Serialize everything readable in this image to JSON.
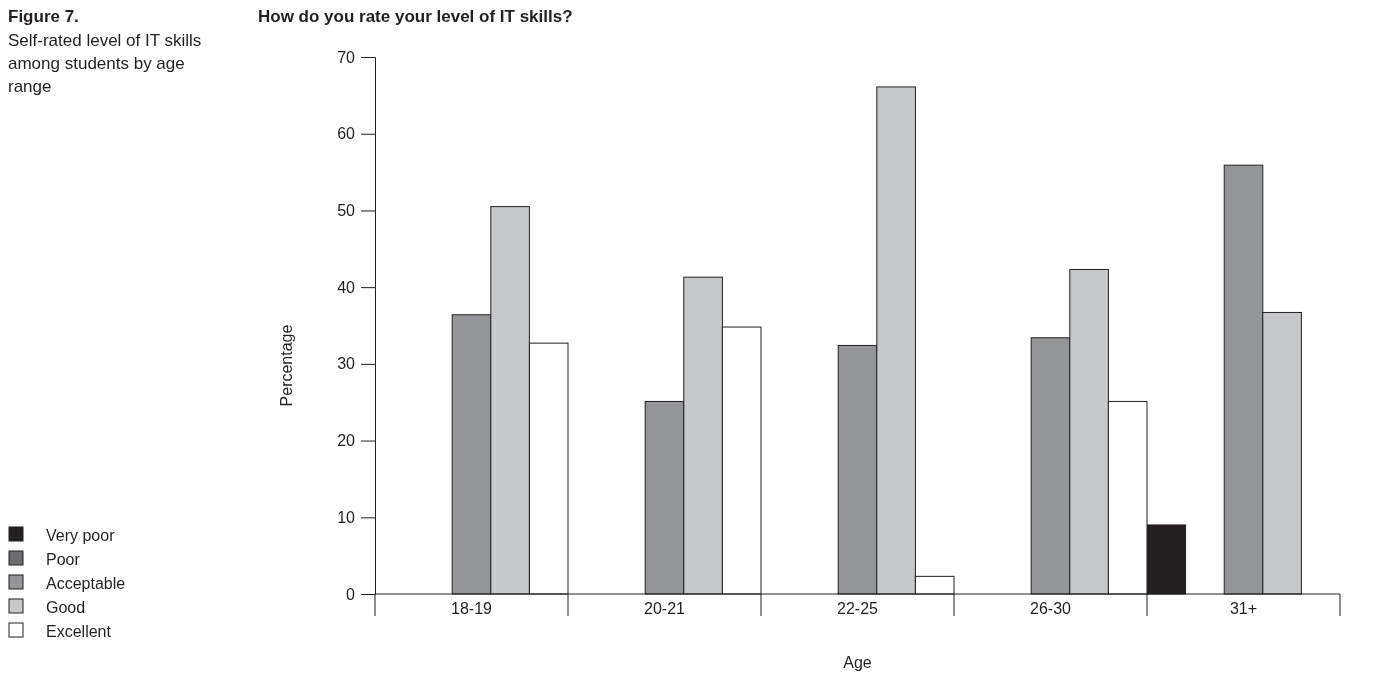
{
  "chart_data": {
    "type": "bar",
    "title": "How do you rate your level of IT skills?",
    "annotations": [
      "Figure 7.",
      "Self-rated level of IT skills among students by age range"
    ],
    "xlabel": "Age",
    "ylabel": "Percentage",
    "categories": [
      "18-19",
      "20-21",
      "22-25",
      "26-30",
      "31+"
    ],
    "series": [
      {
        "name": "Very poor",
        "color": "#231f20",
        "values": [
          0,
          0,
          0,
          0,
          9.0
        ]
      },
      {
        "name": "Poor",
        "color": "#6d6e71",
        "values": [
          0,
          0,
          0,
          0,
          0
        ]
      },
      {
        "name": "Acceptable",
        "color": "#939598",
        "values": [
          36.4,
          25.1,
          32.4,
          33.4,
          55.9
        ]
      },
      {
        "name": "Good",
        "color": "#c7c8ca",
        "values": [
          50.5,
          41.3,
          66.1,
          42.3,
          36.7
        ]
      },
      {
        "name": "Excellent",
        "color": "#ffffff",
        "values": [
          32.7,
          34.8,
          2.3,
          25.1,
          0
        ]
      }
    ],
    "ylim": [
      0,
      70
    ],
    "yticks": [
      0,
      10,
      20,
      30,
      40,
      50,
      60,
      70
    ],
    "grid": false,
    "legend": "bottom left"
  }
}
